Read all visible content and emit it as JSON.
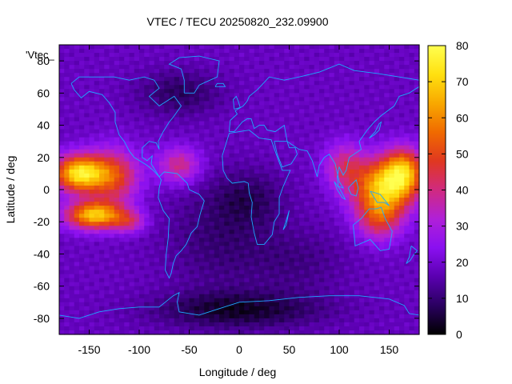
{
  "chart_data": {
    "type": "heatmap",
    "title": "VTEC / TECU 20250820_232.09900",
    "xlabel": "Longitude / deg",
    "ylabel": "Latitude / deg",
    "series_label": "'Vtec_",
    "xlim": [
      -180,
      180
    ],
    "ylim": [
      -90,
      90
    ],
    "xticks": [
      -150,
      -100,
      -50,
      0,
      50,
      100,
      150
    ],
    "yticks": [
      -80,
      -60,
      -40,
      -20,
      0,
      20,
      40,
      60,
      80
    ],
    "colorbar": {
      "min": 0,
      "max": 80,
      "ticks": [
        0,
        10,
        20,
        30,
        40,
        50,
        60,
        70,
        80
      ],
      "palette": [
        "#000000",
        "#2a0060",
        "#5a00b0",
        "#8a10f0",
        "#b020d8",
        "#d02a80",
        "#e03820",
        "#f06a00",
        "#f8a800",
        "#ffe010",
        "#ffff50"
      ]
    },
    "grid": false,
    "background_vtec": 18,
    "features": [
      {
        "lon": -160,
        "lat": 10,
        "slon": 18,
        "slat": 8,
        "amp": 55
      },
      {
        "lon": -145,
        "lat": -16,
        "slon": 20,
        "slat": 6,
        "amp": 50
      },
      {
        "lon": -125,
        "lat": 8,
        "slon": 18,
        "slat": 12,
        "amp": 30
      },
      {
        "lon": -110,
        "lat": -20,
        "slon": 12,
        "slat": 5,
        "amp": 18
      },
      {
        "lon": 145,
        "lat": 2,
        "slon": 22,
        "slat": 12,
        "amp": 48
      },
      {
        "lon": 165,
        "lat": 12,
        "slon": 14,
        "slat": 10,
        "amp": 35
      },
      {
        "lon": 140,
        "lat": -18,
        "slon": 16,
        "slat": 10,
        "amp": 25
      },
      {
        "lon": 105,
        "lat": 15,
        "slon": 14,
        "slat": 10,
        "amp": 20
      },
      {
        "lon": 0,
        "lat": -75,
        "slon": 60,
        "slat": 8,
        "amp": -14
      },
      {
        "lon": -20,
        "lat": -30,
        "slon": 40,
        "slat": 25,
        "amp": -8
      },
      {
        "lon": 10,
        "lat": -5,
        "slon": 25,
        "slat": 12,
        "amp": -8
      },
      {
        "lon": -60,
        "lat": 60,
        "slon": 30,
        "slat": 10,
        "amp": -10
      },
      {
        "lon": 60,
        "lat": -45,
        "slon": 35,
        "slat": 15,
        "amp": -6
      },
      {
        "lon": -60,
        "lat": 15,
        "slon": 15,
        "slat": 8,
        "amp": 22
      }
    ],
    "coastlines": [
      {
        "name": "north-america",
        "pts": [
          [
            -168,
            66
          ],
          [
            -160,
            70
          ],
          [
            -140,
            70
          ],
          [
            -125,
            70
          ],
          [
            -110,
            68
          ],
          [
            -95,
            70
          ],
          [
            -85,
            68
          ],
          [
            -80,
            63
          ],
          [
            -90,
            58
          ],
          [
            -80,
            52
          ],
          [
            -65,
            58
          ],
          [
            -58,
            52
          ],
          [
            -66,
            45
          ],
          [
            -70,
            42
          ],
          [
            -76,
            36
          ],
          [
            -81,
            30
          ],
          [
            -80,
            25
          ],
          [
            -83,
            29
          ],
          [
            -90,
            30
          ],
          [
            -97,
            26
          ],
          [
            -97,
            20
          ],
          [
            -92,
            18
          ],
          [
            -87,
            21
          ],
          [
            -88,
            16
          ],
          [
            -83,
            11
          ],
          [
            -80,
            8
          ],
          [
            -86,
            12
          ],
          [
            -92,
            15
          ],
          [
            -105,
            20
          ],
          [
            -110,
            24
          ],
          [
            -115,
            30
          ],
          [
            -120,
            34
          ],
          [
            -124,
            42
          ],
          [
            -124,
            48
          ],
          [
            -130,
            54
          ],
          [
            -137,
            59
          ],
          [
            -150,
            61
          ],
          [
            -158,
            57
          ],
          [
            -165,
            62
          ],
          [
            -168,
            66
          ]
        ]
      },
      {
        "name": "greenland",
        "pts": [
          [
            -55,
            60
          ],
          [
            -45,
            60
          ],
          [
            -40,
            65
          ],
          [
            -22,
            70
          ],
          [
            -20,
            80
          ],
          [
            -40,
            83
          ],
          [
            -60,
            82
          ],
          [
            -70,
            78
          ],
          [
            -58,
            75
          ],
          [
            -55,
            68
          ],
          [
            -55,
            60
          ]
        ]
      },
      {
        "name": "south-america",
        "pts": [
          [
            -80,
            8
          ],
          [
            -75,
            11
          ],
          [
            -62,
            10
          ],
          [
            -52,
            4
          ],
          [
            -50,
            0
          ],
          [
            -40,
            -3
          ],
          [
            -35,
            -7
          ],
          [
            -39,
            -15
          ],
          [
            -42,
            -23
          ],
          [
            -48,
            -27
          ],
          [
            -53,
            -34
          ],
          [
            -58,
            -38
          ],
          [
            -63,
            -41
          ],
          [
            -66,
            -46
          ],
          [
            -68,
            -52
          ],
          [
            -70,
            -55
          ],
          [
            -74,
            -50
          ],
          [
            -73,
            -40
          ],
          [
            -71,
            -30
          ],
          [
            -70,
            -18
          ],
          [
            -76,
            -13
          ],
          [
            -81,
            -5
          ],
          [
            -80,
            1
          ],
          [
            -78,
            6
          ],
          [
            -80,
            8
          ]
        ]
      },
      {
        "name": "africa",
        "pts": [
          [
            -17,
            21
          ],
          [
            -16,
            12
          ],
          [
            -12,
            7
          ],
          [
            -7,
            4
          ],
          [
            5,
            5
          ],
          [
            9,
            4
          ],
          [
            10,
            -2
          ],
          [
            13,
            -8
          ],
          [
            12,
            -17
          ],
          [
            15,
            -27
          ],
          [
            18,
            -34
          ],
          [
            25,
            -34
          ],
          [
            33,
            -28
          ],
          [
            35,
            -20
          ],
          [
            40,
            -15
          ],
          [
            40,
            -5
          ],
          [
            44,
            2
          ],
          [
            51,
            12
          ],
          [
            43,
            12
          ],
          [
            37,
            22
          ],
          [
            32,
            31
          ],
          [
            20,
            32
          ],
          [
            10,
            37
          ],
          [
            0,
            36
          ],
          [
            -10,
            35
          ],
          [
            -17,
            21
          ]
        ]
      },
      {
        "name": "europe-asia",
        "pts": [
          [
            -10,
            36
          ],
          [
            -9,
            43
          ],
          [
            -2,
            47
          ],
          [
            -4,
            49
          ],
          [
            4,
            52
          ],
          [
            8,
            55
          ],
          [
            10,
            58
          ],
          [
            18,
            62
          ],
          [
            24,
            66
          ],
          [
            30,
            70
          ],
          [
            45,
            68
          ],
          [
            60,
            70
          ],
          [
            80,
            73
          ],
          [
            100,
            78
          ],
          [
            115,
            74
          ],
          [
            140,
            72
          ],
          [
            160,
            70
          ],
          [
            180,
            68
          ],
          [
            180,
            64
          ],
          [
            170,
            60
          ],
          [
            160,
            58
          ],
          [
            155,
            52
          ],
          [
            142,
            46
          ],
          [
            135,
            42
          ],
          [
            128,
            37
          ],
          [
            120,
            30
          ],
          [
            122,
            25
          ],
          [
            110,
            20
          ],
          [
            107,
            12
          ],
          [
            104,
            9
          ],
          [
            100,
            14
          ],
          [
            98,
            8
          ],
          [
            99,
            2
          ],
          [
            104,
            1
          ],
          [
            100,
            5
          ],
          [
            96,
            16
          ],
          [
            90,
            22
          ],
          [
            85,
            20
          ],
          [
            80,
            15
          ],
          [
            78,
            8
          ],
          [
            73,
            18
          ],
          [
            68,
            24
          ],
          [
            60,
            25
          ],
          [
            55,
            27
          ],
          [
            48,
            30
          ],
          [
            45,
            40
          ],
          [
            36,
            36
          ],
          [
            28,
            37
          ],
          [
            25,
            40
          ],
          [
            20,
            40
          ],
          [
            15,
            38
          ],
          [
            12,
            44
          ],
          [
            8,
            44
          ],
          [
            3,
            42
          ],
          [
            -5,
            36
          ],
          [
            -10,
            36
          ]
        ]
      },
      {
        "name": "arabia",
        "pts": [
          [
            35,
            30
          ],
          [
            38,
            22
          ],
          [
            43,
            14
          ],
          [
            52,
            16
          ],
          [
            58,
            22
          ],
          [
            56,
            26
          ],
          [
            50,
            26
          ],
          [
            48,
            30
          ],
          [
            35,
            30
          ]
        ]
      },
      {
        "name": "australia",
        "pts": [
          [
            114,
            -22
          ],
          [
            122,
            -18
          ],
          [
            130,
            -12
          ],
          [
            137,
            -12
          ],
          [
            142,
            -11
          ],
          [
            146,
            -18
          ],
          [
            153,
            -26
          ],
          [
            150,
            -37
          ],
          [
            141,
            -38
          ],
          [
            131,
            -31
          ],
          [
            116,
            -35
          ],
          [
            114,
            -22
          ]
        ]
      },
      {
        "name": "new-zealand",
        "pts": [
          [
            172,
            -35
          ],
          [
            178,
            -38
          ],
          [
            174,
            -41
          ],
          [
            171,
            -44
          ],
          [
            167,
            -46
          ],
          [
            170,
            -42
          ],
          [
            172,
            -35
          ]
        ]
      },
      {
        "name": "indonesia-borneo",
        "pts": [
          [
            109,
            1
          ],
          [
            112,
            -3
          ],
          [
            117,
            -4
          ],
          [
            119,
            1
          ],
          [
            117,
            6
          ],
          [
            112,
            3
          ],
          [
            109,
            1
          ]
        ]
      },
      {
        "name": "sumatra",
        "pts": [
          [
            95,
            5
          ],
          [
            101,
            0
          ],
          [
            106,
            -6
          ],
          [
            103,
            -5
          ],
          [
            98,
            0
          ],
          [
            95,
            5
          ]
        ]
      },
      {
        "name": "new-guinea",
        "pts": [
          [
            131,
            -1
          ],
          [
            141,
            -3
          ],
          [
            150,
            -10
          ],
          [
            145,
            -8
          ],
          [
            138,
            -8
          ],
          [
            131,
            -1
          ]
        ]
      },
      {
        "name": "japan",
        "pts": [
          [
            130,
            32
          ],
          [
            135,
            34
          ],
          [
            140,
            37
          ],
          [
            142,
            42
          ],
          [
            140,
            41
          ],
          [
            136,
            36
          ],
          [
            130,
            32
          ]
        ]
      },
      {
        "name": "madagascar",
        "pts": [
          [
            44,
            -25
          ],
          [
            49,
            -15
          ],
          [
            50,
            -13
          ],
          [
            47,
            -22
          ],
          [
            44,
            -25
          ]
        ]
      },
      {
        "name": "uk",
        "pts": [
          [
            -5,
            50
          ],
          [
            1,
            51
          ],
          [
            -1,
            55
          ],
          [
            -3,
            58
          ],
          [
            -6,
            56
          ],
          [
            -5,
            50
          ]
        ]
      },
      {
        "name": "iceland",
        "pts": [
          [
            -24,
            64
          ],
          [
            -14,
            64
          ],
          [
            -16,
            66
          ],
          [
            -22,
            66
          ],
          [
            -24,
            64
          ]
        ]
      },
      {
        "name": "antarctica",
        "pts": [
          [
            -180,
            -78
          ],
          [
            -160,
            -80
          ],
          [
            -140,
            -76
          ],
          [
            -120,
            -74
          ],
          [
            -100,
            -73
          ],
          [
            -80,
            -73
          ],
          [
            -66,
            -66
          ],
          [
            -60,
            -64
          ],
          [
            -62,
            -70
          ],
          [
            -60,
            -76
          ],
          [
            -40,
            -78
          ],
          [
            -20,
            -74
          ],
          [
            0,
            -70
          ],
          [
            30,
            -69
          ],
          [
            60,
            -67
          ],
          [
            90,
            -66
          ],
          [
            120,
            -66
          ],
          [
            150,
            -68
          ],
          [
            165,
            -72
          ],
          [
            170,
            -77
          ],
          [
            180,
            -78
          ]
        ]
      }
    ]
  }
}
